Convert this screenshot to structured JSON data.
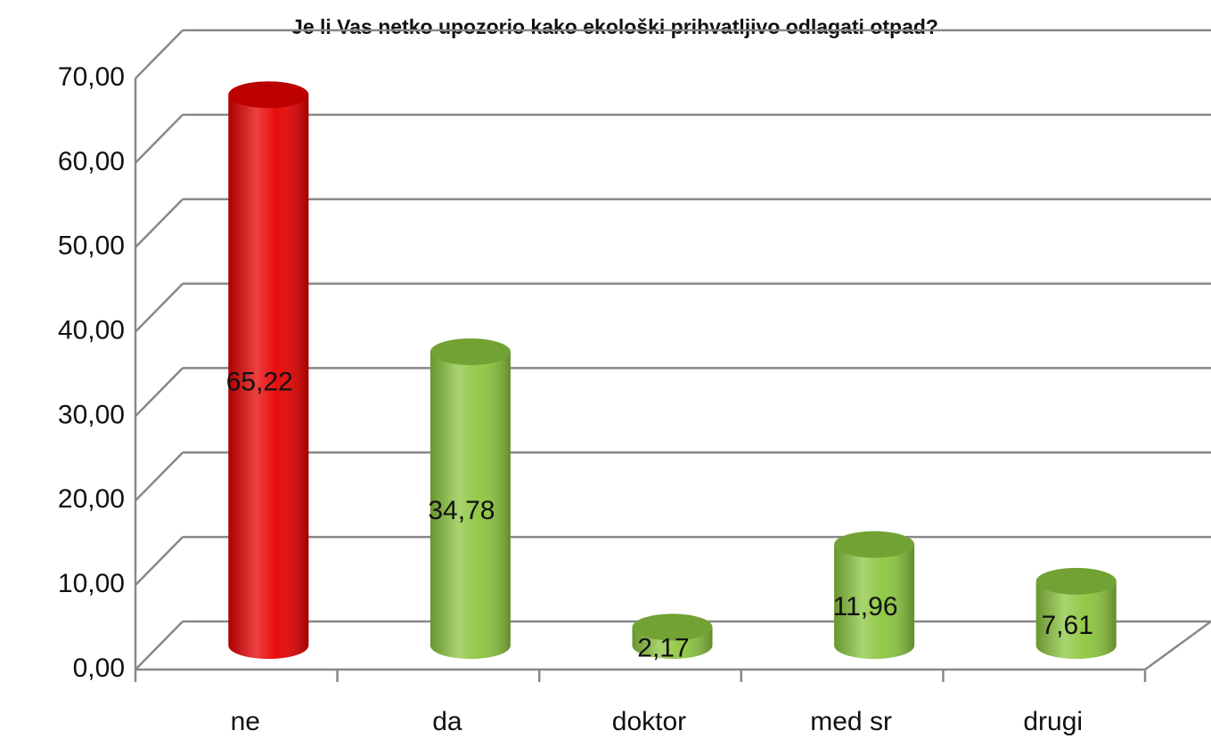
{
  "chart_data": {
    "type": "bar3d",
    "title": "Je li Vas netko upozorio kako ekološki prihvatljivo odlagati otpad?",
    "categories": [
      "ne",
      "da",
      "doktor",
      "med sr",
      "drugi"
    ],
    "values": [
      65.22,
      34.78,
      2.17,
      11.96,
      7.61
    ],
    "value_labels": [
      "65,22",
      "34,78",
      "2,17",
      "11,96",
      "7,61"
    ],
    "colors": [
      "#e60000",
      "#8cc63f",
      "#8cc63f",
      "#8cc63f",
      "#8cc63f"
    ],
    "ylim": [
      0,
      70
    ],
    "yticks": [
      {
        "value": 0,
        "label": "0,00"
      },
      {
        "value": 10,
        "label": "10,00"
      },
      {
        "value": 20,
        "label": "20,00"
      },
      {
        "value": 30,
        "label": "30,00"
      },
      {
        "value": 40,
        "label": "40,00"
      },
      {
        "value": 50,
        "label": "50,00"
      },
      {
        "value": 60,
        "label": "60,00"
      },
      {
        "value": 70,
        "label": "70,00"
      }
    ],
    "grid": true
  }
}
